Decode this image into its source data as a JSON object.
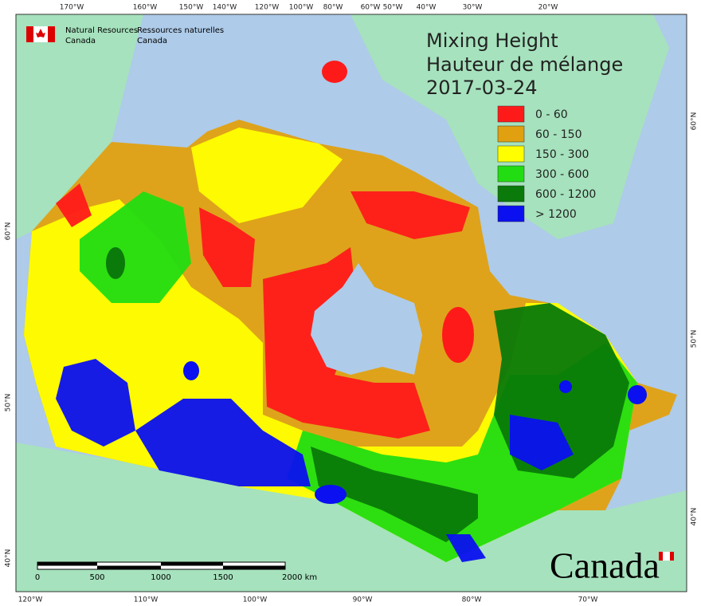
{
  "header": {
    "agency_en": [
      "Natural Resources",
      "Canada"
    ],
    "agency_fr": [
      "Ressources naturelles",
      "Canada"
    ]
  },
  "title": {
    "line1": "Mixing Height",
    "line2": "Hauteur de mélange",
    "date": "2017-03-24"
  },
  "legend": [
    {
      "label": "0 - 60",
      "color": "#ff1a1a"
    },
    {
      "label": "60 - 150",
      "color": "#e0a010"
    },
    {
      "label": "150 - 300",
      "color": "#ffff00"
    },
    {
      "label": "300 - 600",
      "color": "#22dd11"
    },
    {
      "label": "600 - 1200",
      "color": "#0a7a0a"
    },
    {
      "label": "> 1200",
      "color": "#0a10f0"
    }
  ],
  "graticule": {
    "top": [
      "170°W",
      "160°W",
      "150°W",
      "140°W",
      "120°W",
      "100°W",
      "80°W",
      "60°W",
      "50°W",
      "40°W",
      "30°W",
      "20°W"
    ],
    "bottom": [
      "120°W",
      "110°W",
      "100°W",
      "90°W",
      "80°W",
      "70°W"
    ],
    "left": [
      "60°N",
      "50°N",
      "40°N"
    ],
    "right": [
      "60°N",
      "50°N",
      "40°N"
    ]
  },
  "scale_bar": {
    "labels": [
      "0",
      "500",
      "1000",
      "1500",
      "2000 km"
    ]
  },
  "wordmark": "Canada"
}
